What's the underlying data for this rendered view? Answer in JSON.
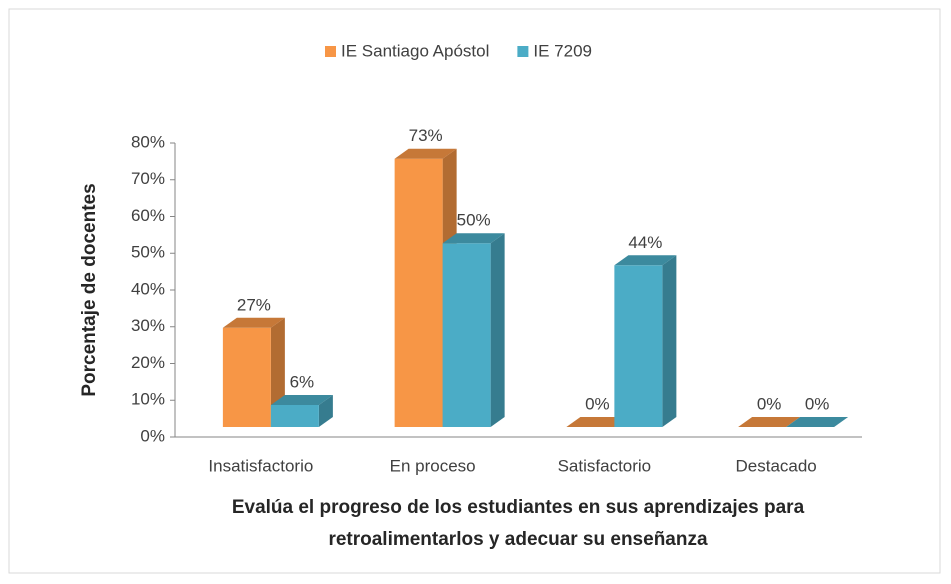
{
  "chart_data": {
    "type": "bar3d",
    "categories": [
      "Insatisfactorio",
      "En proceso",
      "Satisfactorio",
      "Destacado"
    ],
    "series": [
      {
        "name": "IE Santiago Apóstol",
        "color": "#F79646",
        "values": [
          27,
          73,
          0,
          0
        ],
        "value_labels": [
          "27%",
          "73%",
          "0%",
          "0%"
        ]
      },
      {
        "name": "IE 7209",
        "color": "#4BACC6",
        "values": [
          6,
          50,
          44,
          0
        ],
        "value_labels": [
          "6%",
          "50%",
          "44%",
          "0%"
        ]
      }
    ],
    "ylim": [
      0,
      80
    ],
    "yticks": [
      {
        "value": 0,
        "label": "0%"
      },
      {
        "value": 10,
        "label": "10%"
      },
      {
        "value": 20,
        "label": "20%"
      },
      {
        "value": 30,
        "label": "30%"
      },
      {
        "value": 40,
        "label": "40%"
      },
      {
        "value": 50,
        "label": "50%"
      },
      {
        "value": 60,
        "label": "60%"
      },
      {
        "value": 70,
        "label": "70%"
      },
      {
        "value": 80,
        "label": "80%"
      }
    ],
    "ylabel": "Porcentaje de docentes",
    "xlabel": [
      "Evalúa el progreso de los estudiantes en sus aprendizajes para",
      "retroalimentarlos y adecuar su enseñanza"
    ],
    "legend": "top"
  }
}
